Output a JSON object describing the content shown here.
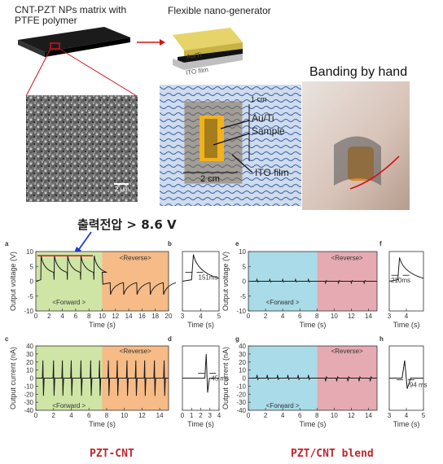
{
  "top": {
    "matrix_label": "CNT-PZT NPs matrix with PTFE polymer",
    "generator_label": "Flexible nano-generator",
    "layer_au": "Au/Ti",
    "layer_ito": "ITO film",
    "photo_labels": {
      "au": "Au/Ti",
      "sample": "Sample",
      "ito": "ITO film",
      "width": "2 cm",
      "height": "1 cm"
    },
    "sem_scale": "2 μm",
    "banding_label": "Banding by hand"
  },
  "annotation": {
    "text": "출력전압 > 8.6 V",
    "color": "#1f3bd8"
  },
  "colors": {
    "forward_bg": "#cfe5a6",
    "reverse_bg": "#f6bb86",
    "blend_forward_bg": "#a9dbe8",
    "blend_reverse_bg": "#e6aab2",
    "caption": "#c0272d"
  },
  "captions": {
    "left": "PZT-CNT",
    "right": "PZT/CNT blend"
  },
  "chart_data": [
    {
      "panel": "a",
      "type": "line",
      "ylabel": "Output voltage (V)",
      "xlabel": "Time (s)",
      "xlim": [
        0,
        20
      ],
      "ylim": [
        -10,
        10
      ],
      "xticks": [
        0,
        2,
        4,
        6,
        8,
        10,
        12,
        14,
        16,
        18,
        20
      ],
      "yticks": [
        -10,
        -5,
        0,
        5,
        10
      ],
      "regions": [
        {
          "label": "<Forward >",
          "x0": 0,
          "x1": 10,
          "label_y": -7
        },
        {
          "label": "<Reverse>",
          "x0": 10,
          "x1": 20,
          "label_y": 8
        }
      ],
      "forward_peaks_x": [
        0.8,
        2.8,
        4.8,
        6.8,
        8.8
      ],
      "forward_peak_y": 8.6,
      "reverse_peaks_x": [
        11.2,
        13.2,
        15.2,
        17.2,
        19.2
      ],
      "reverse_peak_y": -4.5,
      "baseline": 0
    },
    {
      "panel": "b",
      "type": "line",
      "xlabel": "Time (s)",
      "xlim": [
        3,
        5
      ],
      "ylim": [
        -10,
        10
      ],
      "xticks": [
        3,
        4,
        5
      ],
      "peak_x": 3.6,
      "peak_y": 9,
      "annotation": "151ms"
    },
    {
      "panel": "c",
      "type": "line",
      "ylabel": "Output current (nA)",
      "xlabel": "Time (s)",
      "xlim": [
        0,
        15
      ],
      "ylim": [
        -40,
        40
      ],
      "xticks": [
        0,
        2,
        4,
        6,
        8,
        10,
        12,
        14
      ],
      "yticks": [
        -40,
        -30,
        -20,
        -10,
        0,
        10,
        20,
        30,
        40
      ],
      "regions": [
        {
          "label": "<Forward >",
          "x0": 0,
          "x1": 7.5,
          "label_y": -34
        },
        {
          "label": "<Reverse>",
          "x0": 7.5,
          "x1": 15,
          "label_y": 34
        }
      ],
      "spikes_x": [
        0.8,
        2.0,
        3.0,
        4.0,
        5.1,
        6.2,
        7.2,
        8.2,
        9.2,
        10.3,
        11.3,
        12.3,
        13.4,
        14.5
      ],
      "spike_up": 22,
      "spike_down": -22
    },
    {
      "panel": "d",
      "type": "line",
      "xlabel": "Time (s)",
      "xlim": [
        0,
        4
      ],
      "ylim": [
        -40,
        40
      ],
      "xticks": [
        0,
        1,
        2,
        3,
        4
      ],
      "peak_x": 2.6,
      "peak_y": 30,
      "annotation": "45 ms"
    },
    {
      "panel": "e",
      "type": "line",
      "ylabel": "Output voltage (V)",
      "xlabel": "Time (s)",
      "xlim": [
        0,
        15
      ],
      "ylim": [
        -10,
        10
      ],
      "xticks": [
        0,
        2,
        4,
        6,
        8,
        10,
        12,
        14
      ],
      "yticks": [
        -10,
        -5,
        0,
        5,
        10
      ],
      "regions": [
        {
          "label": "<Forward >",
          "x0": 0,
          "x1": 8,
          "label_y": -7
        },
        {
          "label": "<Reverse>",
          "x0": 8,
          "x1": 15,
          "label_y": 8
        }
      ],
      "spikes_x": [
        1,
        2.5,
        4,
        5.5,
        7,
        9,
        10.5,
        12,
        13.5
      ],
      "spike_y": 0.6
    },
    {
      "panel": "f",
      "type": "line",
      "xlabel": "Time (s)",
      "xlim": [
        3,
        5
      ],
      "ylim": [
        -10,
        10
      ],
      "xticks": [
        3,
        4
      ],
      "peak_x": 3.6,
      "peak_y": 8,
      "annotation": "210ms"
    },
    {
      "panel": "g",
      "type": "line",
      "ylabel": "Output current (nA)",
      "xlabel": "Time (s)",
      "xlim": [
        0,
        15
      ],
      "ylim": [
        -40,
        40
      ],
      "xticks": [
        0,
        2,
        4,
        6,
        8,
        10,
        12,
        14
      ],
      "yticks": [
        -40,
        -30,
        -20,
        -10,
        0,
        10,
        20,
        30,
        40
      ],
      "regions": [
        {
          "label": "<Forward >",
          "x0": 0,
          "x1": 8,
          "label_y": -34
        },
        {
          "label": "<Reverse>",
          "x0": 8,
          "x1": 15,
          "label_y": 34
        }
      ],
      "spikes_x": [
        1,
        2.2,
        3.4,
        4.6,
        5.8,
        7,
        9,
        10.3,
        11.6,
        12.9,
        14.2
      ],
      "spike_y": 4
    },
    {
      "panel": "h",
      "type": "line",
      "xlabel": "Time (s)",
      "xlim": [
        3,
        5
      ],
      "ylim": [
        -40,
        40
      ],
      "xticks": [
        3,
        4,
        5
      ],
      "peak_x": 3.9,
      "peak_y": 22,
      "annotation": "94 ms"
    }
  ]
}
